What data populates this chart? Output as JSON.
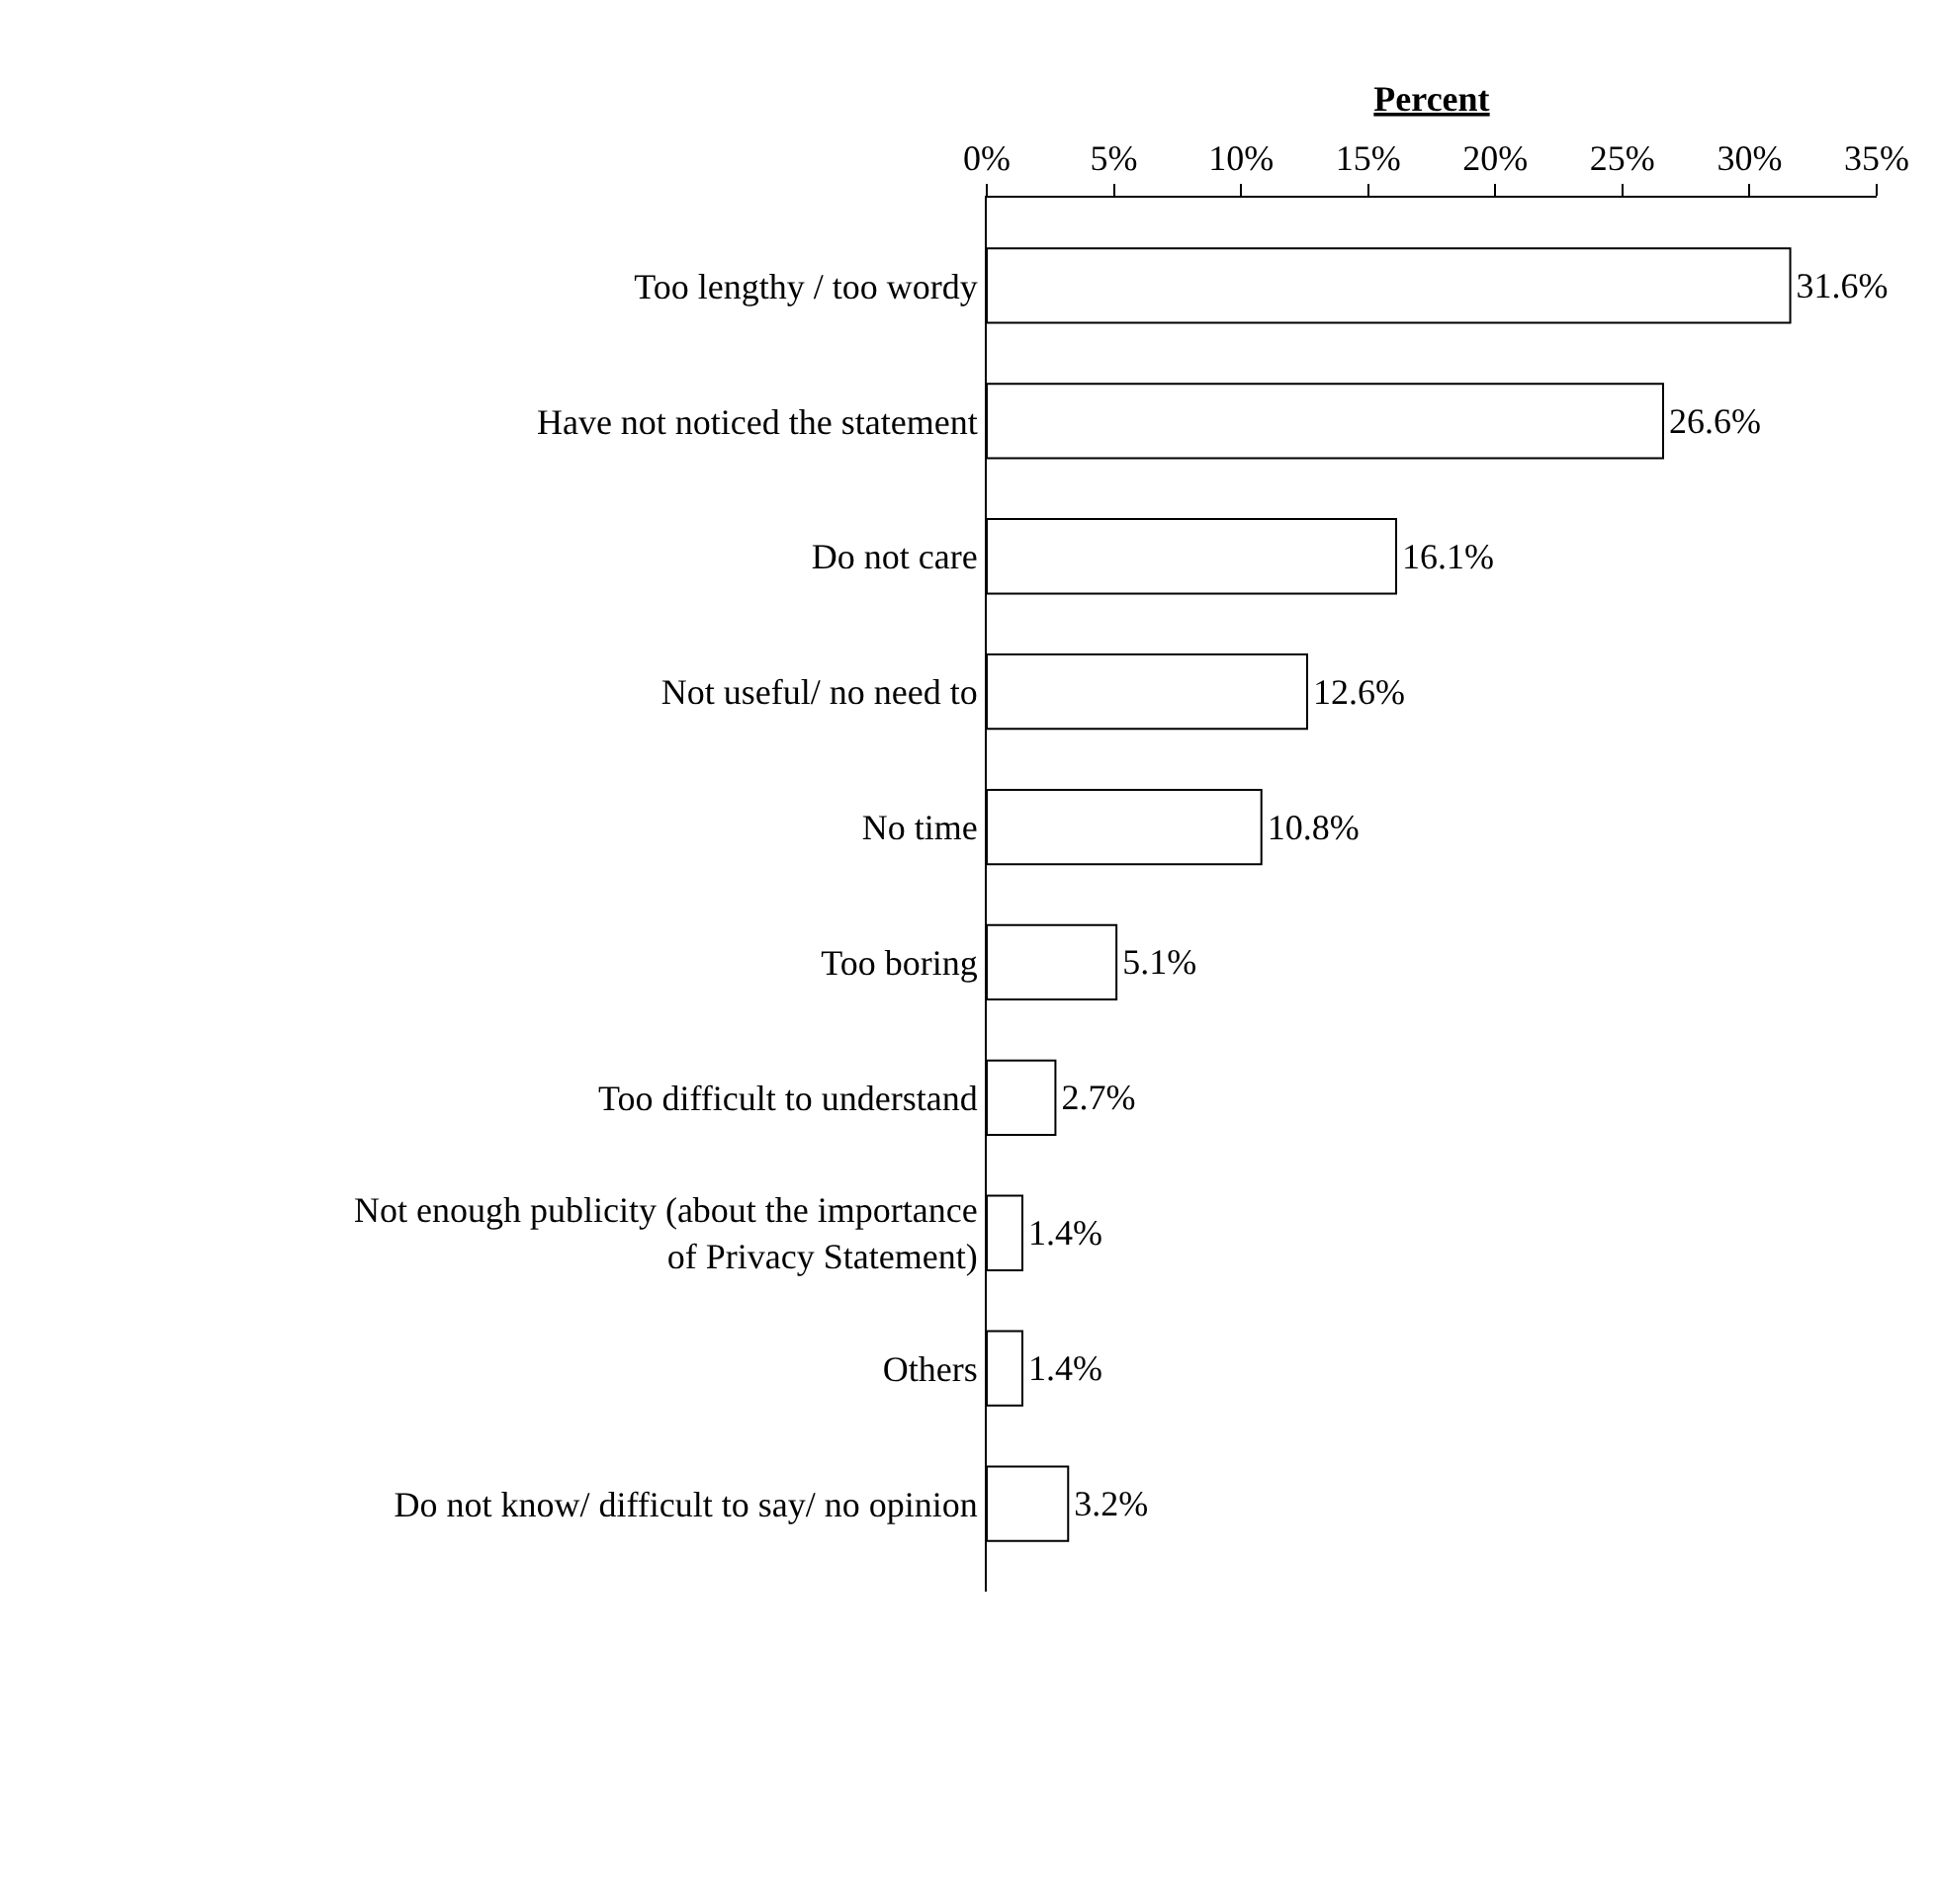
{
  "chart_data": {
    "type": "bar",
    "orientation": "horizontal",
    "xlabel": "Percent",
    "categories": [
      "Too lengthy / too wordy",
      "Have not noticed the statement",
      "Do not care",
      "Not useful/ no need to",
      "No time",
      "Too boring",
      "Too difficult to understand",
      "Not enough publicity (about the importance of Privacy Statement)",
      "Others",
      "Do not know/ difficult to say/ no opinion"
    ],
    "values": [
      31.6,
      26.6,
      16.1,
      12.6,
      10.8,
      5.1,
      2.7,
      1.4,
      1.4,
      3.2
    ],
    "value_labels": [
      "31.6%",
      "26.6%",
      "16.1%",
      "12.6%",
      "10.8%",
      "5.1%",
      "2.7%",
      "1.4%",
      "1.4%",
      "3.2%"
    ],
    "color": "#ffffff",
    "xlim": [
      0,
      35
    ],
    "xticks": [
      {
        "value": 0,
        "label": "0%"
      },
      {
        "value": 5,
        "label": "5%"
      },
      {
        "value": 10,
        "label": "10%"
      },
      {
        "value": 15,
        "label": "15%"
      },
      {
        "value": 20,
        "label": "20%"
      },
      {
        "value": 25,
        "label": "25%"
      },
      {
        "value": 30,
        "label": "30%"
      },
      {
        "value": 35,
        "label": "35%"
      }
    ],
    "legend": false
  }
}
